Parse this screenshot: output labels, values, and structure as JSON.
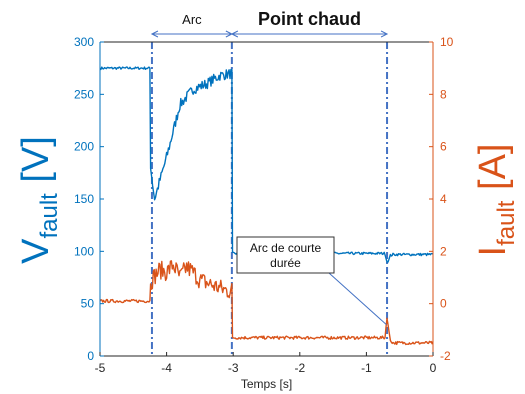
{
  "chart_data": {
    "type": "line",
    "xlabel": "Temps [s]",
    "xlim": [
      -5,
      0
    ],
    "x_ticks": [
      -5,
      -4,
      -3,
      -2,
      -1,
      0
    ],
    "ylabel_left": {
      "main": "V",
      "sub": "fault",
      "unit": "[V]"
    },
    "ylabel_right": {
      "main": "I",
      "sub": "fault",
      "unit": "[A]"
    },
    "ylim_left": [
      0,
      300
    ],
    "y_ticks_left": [
      0,
      50,
      100,
      150,
      200,
      250,
      300
    ],
    "ylim_right": [
      -2,
      10
    ],
    "y_ticks_right": [
      -2,
      0,
      2,
      4,
      6,
      8,
      10
    ],
    "grid": false,
    "colors": {
      "voltage": "#0072BD",
      "current": "#D95319",
      "markers": "#4472C4"
    },
    "series": [
      {
        "axis": "left",
        "x": [
          -5,
          -4.25,
          -4.24,
          -4.18,
          -4.0,
          -3.8,
          -3.6,
          -3.4,
          -3.2,
          -3.02,
          -3.01,
          -2.5,
          -2.0,
          -1.5,
          -1.0,
          -0.72,
          -0.69,
          -0.66,
          -0.64,
          -0.6,
          -0.3,
          0
        ],
        "y": [
          275,
          275,
          180,
          150,
          190,
          240,
          255,
          260,
          268,
          270,
          98,
          98,
          98,
          98,
          98,
          98,
          90,
          92,
          96,
          97,
          97,
          97
        ]
      },
      {
        "axis": "right",
        "x": [
          -5,
          -4.25,
          -4.24,
          -4.2,
          -4.1,
          -4.0,
          -3.9,
          -3.8,
          -3.7,
          -3.6,
          -3.5,
          -3.4,
          -3.3,
          -3.2,
          -3.1,
          -3.02,
          -3.01,
          -2.5,
          -2.0,
          -1.5,
          -1.0,
          -0.72,
          -0.69,
          -0.66,
          -0.64,
          -0.6,
          -0.3,
          0
        ],
        "y": [
          0.1,
          0.1,
          0.8,
          1.0,
          1.3,
          1.2,
          1.5,
          1.0,
          1.4,
          1.2,
          0.9,
          0.8,
          0.7,
          0.6,
          0.5,
          0.5,
          -1.3,
          -1.3,
          -1.3,
          -1.3,
          -1.3,
          -1.3,
          -0.5,
          -1.1,
          -1.4,
          -1.5,
          -1.5,
          -1.5
        ]
      }
    ],
    "markers": [
      {
        "x": -4.22
      },
      {
        "x": -3.02
      },
      {
        "x": -0.69
      }
    ],
    "spans": [
      {
        "from": -4.22,
        "to": -3.02,
        "label": "Arc"
      },
      {
        "from": -3.02,
        "to": -0.69,
        "label": "Point chaud"
      }
    ],
    "callout": {
      "text_line1": "Arc de courte",
      "text_line2": "durée",
      "target_x": -0.7,
      "target_y_left": 30
    }
  }
}
